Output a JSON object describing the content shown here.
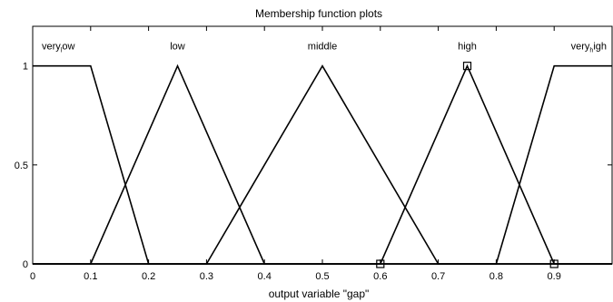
{
  "chart_data": {
    "type": "line",
    "title": "Membership function plots",
    "xlabel": "output variable \"gap\"",
    "ylabel": "",
    "xlim": [
      0,
      1
    ],
    "ylim": [
      0,
      1.2
    ],
    "x_ticks": [
      0,
      0.1,
      0.2,
      0.3,
      0.4,
      0.5,
      0.6,
      0.7,
      0.8,
      0.9
    ],
    "x_tick_labels": [
      "0",
      "0.1",
      "0.2",
      "0.3",
      "0.4",
      "0.5",
      "0.6",
      "0.7",
      "0.8",
      "0.9"
    ],
    "y_ticks": [
      0,
      0.5,
      1
    ],
    "y_tick_labels": [
      "0",
      "0.5",
      "1"
    ],
    "grid": false,
    "line_color": "#000000",
    "series": [
      {
        "name_parts": [
          "very",
          "l",
          "ow"
        ],
        "x": [
          0,
          0.1,
          0.2,
          1
        ],
        "y": [
          1,
          1,
          0,
          0
        ]
      },
      {
        "name": "low",
        "x": [
          0,
          0.1,
          0.25,
          0.4,
          1
        ],
        "y": [
          0,
          0,
          1,
          0,
          0
        ]
      },
      {
        "name": "middle",
        "x": [
          0,
          0.3,
          0.5,
          0.7,
          1
        ],
        "y": [
          0,
          0,
          1,
          0,
          0
        ]
      },
      {
        "name": "high",
        "x": [
          0,
          0.6,
          0.75,
          0.9,
          1
        ],
        "y": [
          0,
          0,
          1,
          0,
          0
        ]
      },
      {
        "name_parts": [
          "very",
          "h",
          "igh"
        ],
        "x": [
          0,
          0.8,
          0.9,
          1
        ],
        "y": [
          0,
          0,
          1,
          1
        ]
      }
    ],
    "markers": {
      "shape": "square",
      "points": [
        {
          "x": 0.6,
          "y": 0
        },
        {
          "x": 0.75,
          "y": 1
        },
        {
          "x": 0.9,
          "y": 0
        }
      ]
    }
  }
}
